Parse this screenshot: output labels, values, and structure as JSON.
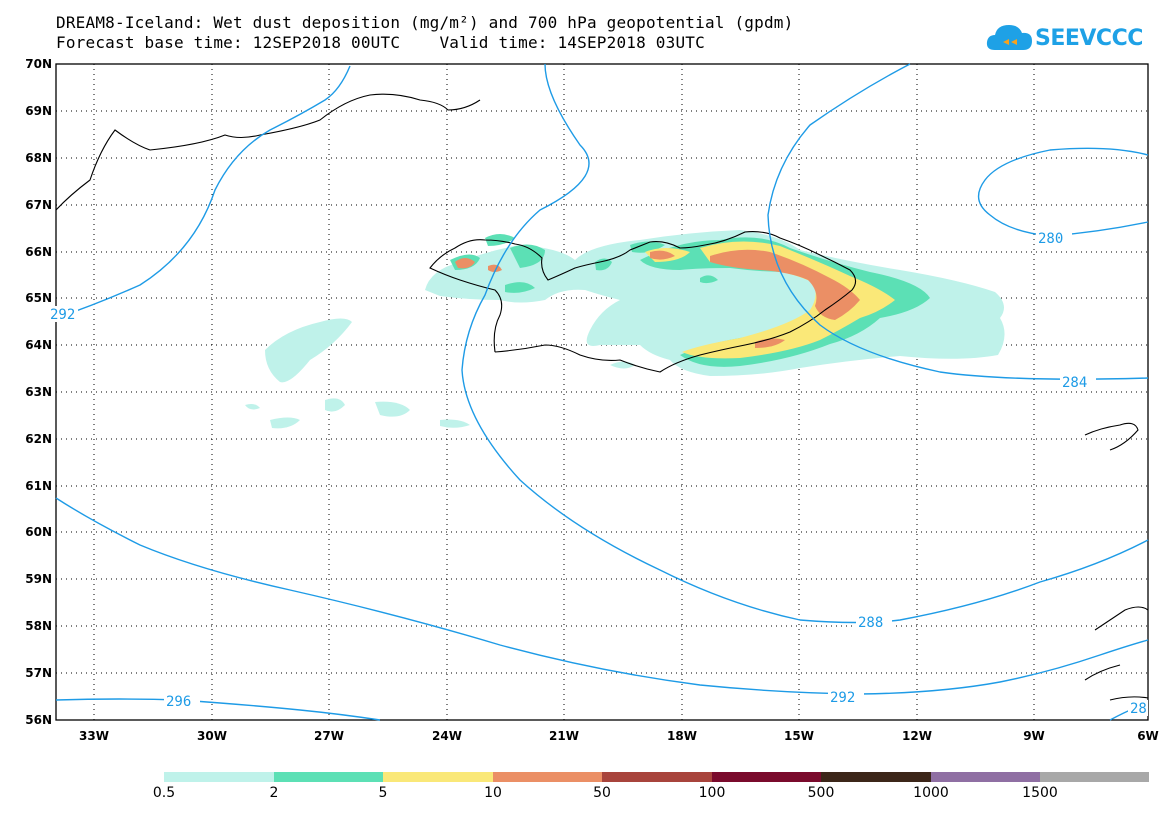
{
  "title": {
    "line1": "DREAM8-Iceland: Wet dust deposition (mg/m²) and 700 hPa geopotential (gpdm)",
    "line2": "Forecast base time: 12SEP2018 00UTC    Valid time: 14SEP2018 03UTC"
  },
  "logo": {
    "text": "SEEVCCC",
    "icon": "cloud-icon",
    "color": "#1ea1e6"
  },
  "map": {
    "lat_labels": [
      "70N",
      "69N",
      "68N",
      "67N",
      "66N",
      "65N",
      "64N",
      "63N",
      "62N",
      "61N",
      "60N",
      "59N",
      "58N",
      "57N",
      "56N"
    ],
    "lon_labels": [
      "33W",
      "30W",
      "27W",
      "24W",
      "21W",
      "18W",
      "15W",
      "12W",
      "9W",
      "6W"
    ],
    "contour_labels": [
      "280",
      "284",
      "288",
      "292",
      "296",
      "292",
      "28"
    ],
    "contour_color": "#1e9be6"
  },
  "legend": {
    "colors": [
      "#bff2ea",
      "#5ce0b5",
      "#fae878",
      "#eb8f65",
      "#a8443c",
      "#7a0a2c",
      "#3c2619",
      "#8f6fa3",
      "#a8a8a8"
    ],
    "labels": [
      "0.5",
      "2",
      "5",
      "10",
      "50",
      "100",
      "500",
      "1000",
      "1500"
    ]
  }
}
